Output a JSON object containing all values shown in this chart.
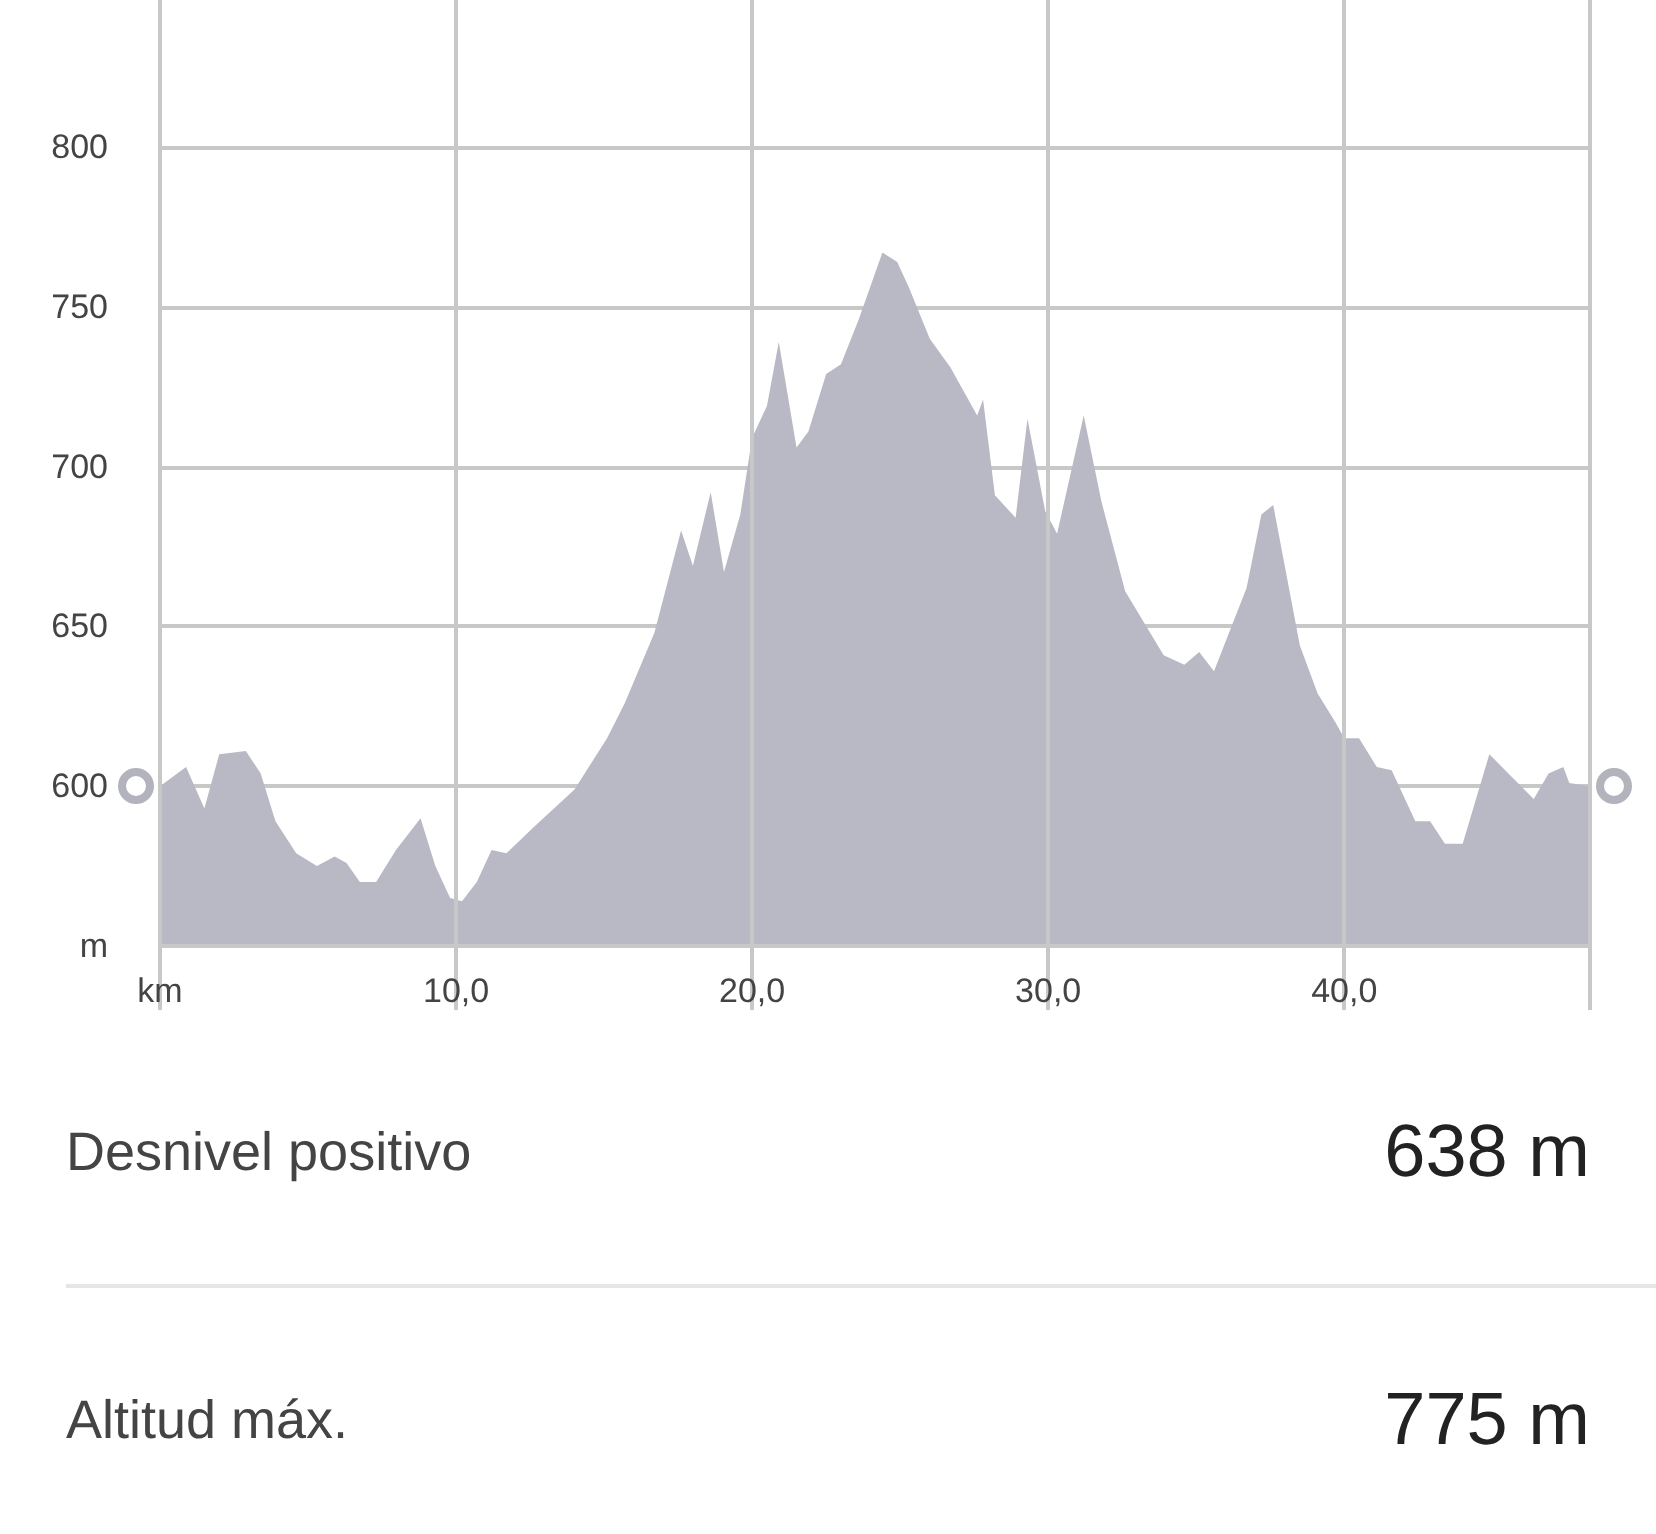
{
  "chart_data": {
    "type": "area",
    "x": [
      0,
      0.88,
      1.5,
      2.0,
      2.9,
      3.4,
      3.9,
      4.6,
      5.3,
      5.9,
      6.3,
      6.75,
      7.3,
      7.97,
      8.8,
      9.3,
      9.8,
      10.2,
      10.7,
      11.2,
      11.7,
      12.6,
      14.0,
      15.1,
      15.7,
      16.7,
      17.6,
      18.0,
      18.6,
      19.05,
      19.6,
      20.0,
      20.5,
      20.9,
      21.5,
      21.9,
      22.5,
      23.0,
      23.6,
      24.4,
      24.9,
      25.3,
      26.0,
      26.7,
      27.6,
      27.8,
      28.2,
      28.9,
      29.3,
      29.9,
      30.3,
      31.2,
      31.8,
      32.6,
      33.9,
      34.6,
      35.1,
      35.6,
      36.7,
      37.2,
      37.6,
      38.5,
      39.1,
      39.7,
      40.0,
      40.5,
      41.1,
      41.6,
      42.4,
      42.9,
      43.4,
      44.0,
      44.9,
      46.4,
      46.9,
      47.4,
      47.6,
      48.3
    ],
    "series": [
      {
        "color": "#b9b9c5",
        "values": [
          600,
          606,
          593,
          610,
          611,
          604,
          589,
          579,
          575,
          578,
          576,
          570,
          570,
          580,
          590,
          575,
          565,
          564,
          570,
          580,
          579,
          587,
          599,
          615,
          626,
          648,
          680,
          669,
          692,
          667,
          685,
          709,
          719,
          739,
          706,
          711,
          729,
          732,
          746,
          767,
          764,
          756,
          740,
          731,
          716,
          721,
          691,
          684,
          715,
          686,
          679,
          716,
          689,
          661,
          641,
          638,
          642,
          636,
          662,
          685,
          688,
          644,
          629,
          620,
          615,
          615,
          606,
          605,
          589,
          589,
          582,
          582,
          610,
          596,
          604,
          606,
          601,
          600
        ]
      }
    ],
    "xlim": [
      0,
      48.3
    ],
    "xticks": [
      {
        "value": 0,
        "label": "km"
      },
      {
        "value": 10,
        "label": "10,0"
      },
      {
        "value": 20,
        "label": "20,0"
      },
      {
        "value": 30,
        "label": "30,0"
      },
      {
        "value": 40,
        "label": "40,0"
      },
      {
        "value": 48.3,
        "label": null
      }
    ],
    "ylim": [
      550,
      846
    ],
    "yticks": [
      {
        "value": 550,
        "label": "m"
      },
      600,
      650,
      700,
      750,
      800
    ],
    "grid": true,
    "marker": "none",
    "annotations": [
      "Desnivel positivo",
      "638 m",
      "Altitud máx.",
      "775 m"
    ]
  }
}
